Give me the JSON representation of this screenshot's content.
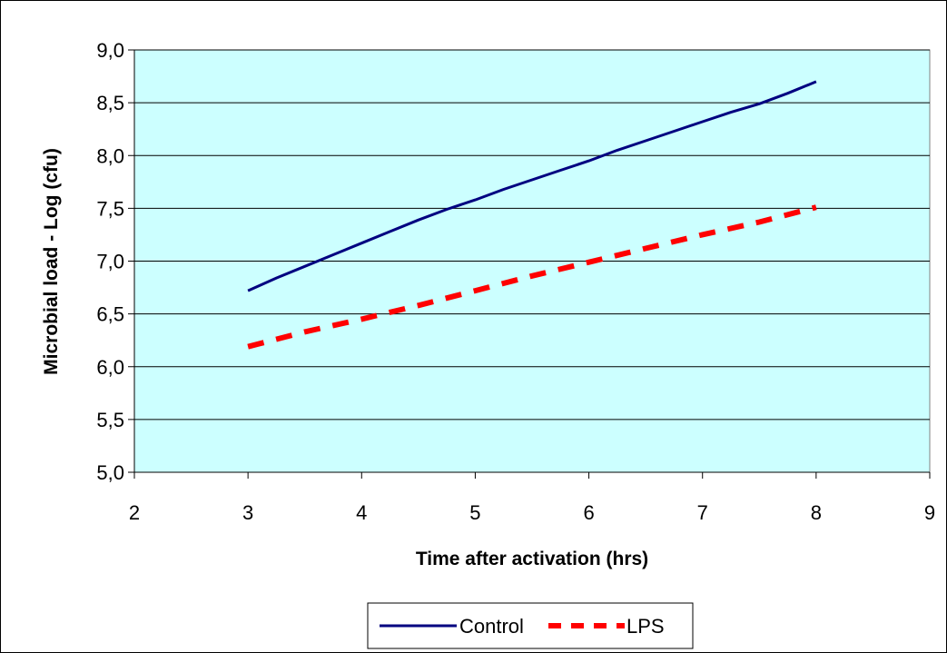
{
  "chart_data": {
    "type": "line",
    "title": "",
    "xlabel": "Time after activation (hrs)",
    "ylabel": "Microbial load - Log (cfu)",
    "xlim": [
      2,
      9
    ],
    "ylim": [
      5.0,
      9.0
    ],
    "x_ticks": [
      "2",
      "3",
      "4",
      "5",
      "6",
      "7",
      "8",
      "9"
    ],
    "x_tick_values": [
      2,
      3,
      4,
      5,
      6,
      7,
      8,
      9
    ],
    "y_ticks": [
      "5,0",
      "5,5",
      "6,0",
      "6,5",
      "7,0",
      "7,5",
      "8,0",
      "8,5",
      "9,0"
    ],
    "y_tick_values": [
      5.0,
      5.5,
      6.0,
      6.5,
      7.0,
      7.5,
      8.0,
      8.5,
      9.0
    ],
    "grid": "horizontal",
    "plot_background": "#ccffff",
    "legend_position": "bottom",
    "series": [
      {
        "name": "Control",
        "color": "#000080",
        "style": "solid",
        "x": [
          3,
          3.25,
          3.5,
          3.75,
          4,
          4.25,
          4.5,
          4.75,
          5,
          5.25,
          5.5,
          5.75,
          6,
          6.25,
          6.5,
          6.75,
          7,
          7.25,
          7.5,
          7.75,
          8
        ],
        "y": [
          6.72,
          6.84,
          6.95,
          7.06,
          7.17,
          7.28,
          7.39,
          7.49,
          7.58,
          7.68,
          7.77,
          7.86,
          7.95,
          8.05,
          8.14,
          8.23,
          8.32,
          8.41,
          8.49,
          8.59,
          8.7
        ]
      },
      {
        "name": "LPS",
        "color": "#ff0000",
        "style": "dashed",
        "x": [
          3,
          3.5,
          4,
          4.5,
          5,
          5.5,
          6,
          6.5,
          7,
          7.5,
          8
        ],
        "y": [
          6.19,
          6.33,
          6.45,
          6.58,
          6.72,
          6.86,
          6.99,
          7.12,
          7.25,
          7.37,
          7.51
        ]
      }
    ]
  }
}
